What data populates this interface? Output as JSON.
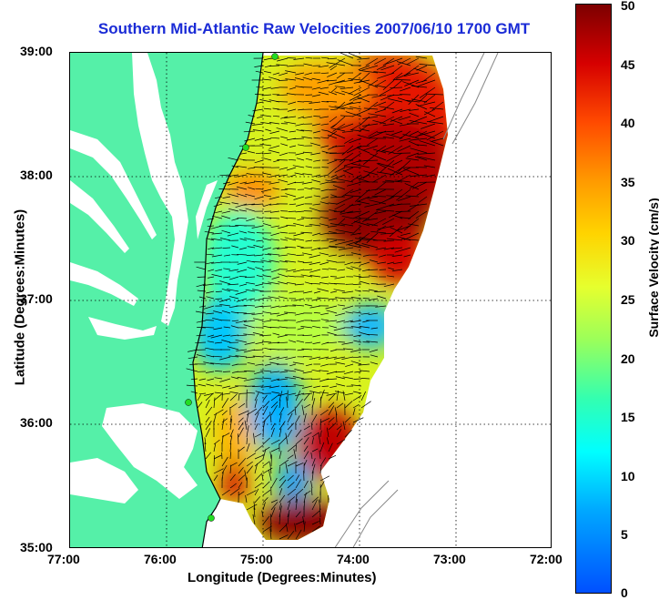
{
  "title": "Southern Mid-Atlantic Raw Velocities 2007/06/10 1700 GMT",
  "x_axis": {
    "label": "Longitude (Degrees:Minutes)",
    "ticks": [
      "77:00",
      "76:00",
      "75:00",
      "74:00",
      "73:00",
      "72:00"
    ]
  },
  "y_axis": {
    "label": "Latitude (Degrees:Minutes)",
    "ticks": [
      "39:00",
      "38:00",
      "37:00",
      "36:00",
      "35:00"
    ]
  },
  "colorbar": {
    "label": "Surface Velocity (cm/s)",
    "ticks": [
      "50",
      "45",
      "40",
      "35",
      "30",
      "25",
      "20",
      "15",
      "10",
      "5",
      "0"
    ],
    "range": [
      0,
      50
    ],
    "colormap": "jet"
  },
  "colors": {
    "land": "#55f0a8",
    "title": "#1a2bd6",
    "station": "#22dd22",
    "vector": "#000000"
  },
  "grid": "dotted"
}
